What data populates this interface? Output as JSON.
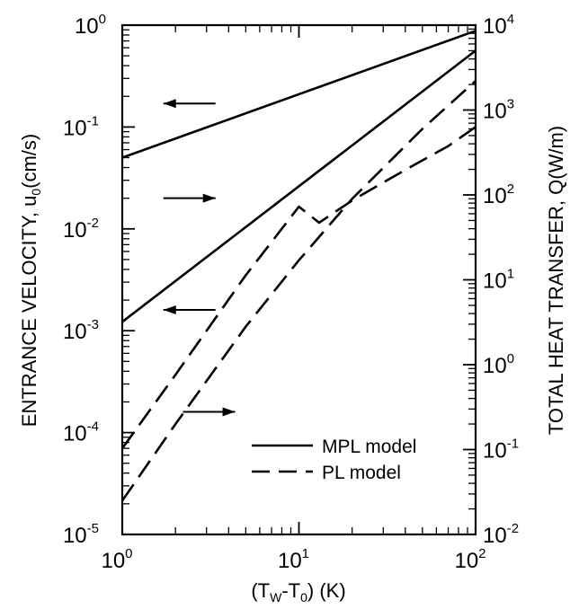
{
  "chart_data": {
    "type": "line",
    "xlabel": "(T_W-T_0) (K)",
    "xlabel_parts": {
      "open": "(T",
      "sub_w": "W",
      "dash": "-T",
      "sub_0": "0",
      "close": ") (K)"
    },
    "ylabel_left": "ENTRANCE VELOCITY, u_0 (cm/s)",
    "ylabel_left_parts": {
      "main": "ENTRANCE VELOCITY, u",
      "sub": "0",
      "unit": "(cm/s)"
    },
    "ylabel_right": "TOTAL HEAT TRANSFER, Q(W/m)",
    "x_scale": "log",
    "y_scale_left": "log",
    "y_scale_right": "log",
    "xlim": [
      1,
      100
    ],
    "ylim_left": [
      1e-05,
      1
    ],
    "ylim_right": [
      0.01,
      10000
    ],
    "x_ticks": [
      {
        "base": "10",
        "exp": "0",
        "v": 1
      },
      {
        "base": "10",
        "exp": "1",
        "v": 10
      },
      {
        "base": "10",
        "exp": "2",
        "v": 100
      }
    ],
    "y_ticks_left": [
      {
        "base": "10",
        "exp": "0",
        "v": 1
      },
      {
        "base": "10",
        "exp": "-1",
        "v": 0.1
      },
      {
        "base": "10",
        "exp": "-2",
        "v": 0.01
      },
      {
        "base": "10",
        "exp": "-3",
        "v": 0.001
      },
      {
        "base": "10",
        "exp": "-4",
        "v": 0.0001
      },
      {
        "base": "10",
        "exp": "-5",
        "v": 1e-05
      }
    ],
    "y_ticks_right": [
      {
        "base": "10",
        "exp": "4",
        "v": 10000
      },
      {
        "base": "10",
        "exp": "3",
        "v": 1000
      },
      {
        "base": "10",
        "exp": "2",
        "v": 100
      },
      {
        "base": "10",
        "exp": "1",
        "v": 10
      },
      {
        "base": "10",
        "exp": "0",
        "v": 1
      },
      {
        "base": "10",
        "exp": "-1",
        "v": 0.1
      },
      {
        "base": "10",
        "exp": "-2",
        "v": 0.01
      }
    ],
    "legend": [
      {
        "label": "MPL model",
        "style": "solid"
      },
      {
        "label": "PL model",
        "style": "dashed"
      }
    ],
    "legend_position": "lower-right",
    "series": [
      {
        "model": "MPL model",
        "quantity": "velocity",
        "axis": "left",
        "style": "solid",
        "points": [
          [
            1,
            0.05
          ],
          [
            100,
            0.88
          ]
        ]
      },
      {
        "model": "MPL model",
        "quantity": "heat transfer",
        "axis": "right",
        "style": "solid",
        "points": [
          [
            1,
            3.2
          ],
          [
            100,
            5000
          ]
        ]
      },
      {
        "model": "PL model",
        "quantity": "velocity",
        "axis": "left",
        "style": "dashed",
        "points": [
          [
            1,
            7e-05
          ],
          [
            2,
            0.00037
          ],
          [
            5,
            0.0035
          ],
          [
            10,
            0.0165
          ],
          [
            13,
            0.0115
          ],
          [
            20,
            0.019
          ],
          [
            40,
            0.038
          ],
          [
            70,
            0.065
          ],
          [
            100,
            0.1
          ]
        ]
      },
      {
        "model": "PL model",
        "quantity": "heat transfer",
        "axis": "right",
        "style": "dashed",
        "points": [
          [
            1,
            0.025
          ],
          [
            2,
            0.2
          ],
          [
            5,
            2.8
          ],
          [
            10,
            17
          ],
          [
            20,
            90
          ],
          [
            50,
            600
          ],
          [
            100,
            2200
          ]
        ]
      }
    ],
    "arrows": [
      {
        "direction": "left",
        "x": 2.4,
        "y_left": 0.17
      },
      {
        "direction": "right",
        "x": 2.4,
        "y_left": 0.02
      },
      {
        "direction": "left",
        "x": 2.4,
        "y_left": 0.0016
      },
      {
        "direction": "right",
        "x": 3.1,
        "y_left": 0.00016
      }
    ],
    "colors": {
      "line": "#000000",
      "background": "#ffffff"
    }
  }
}
